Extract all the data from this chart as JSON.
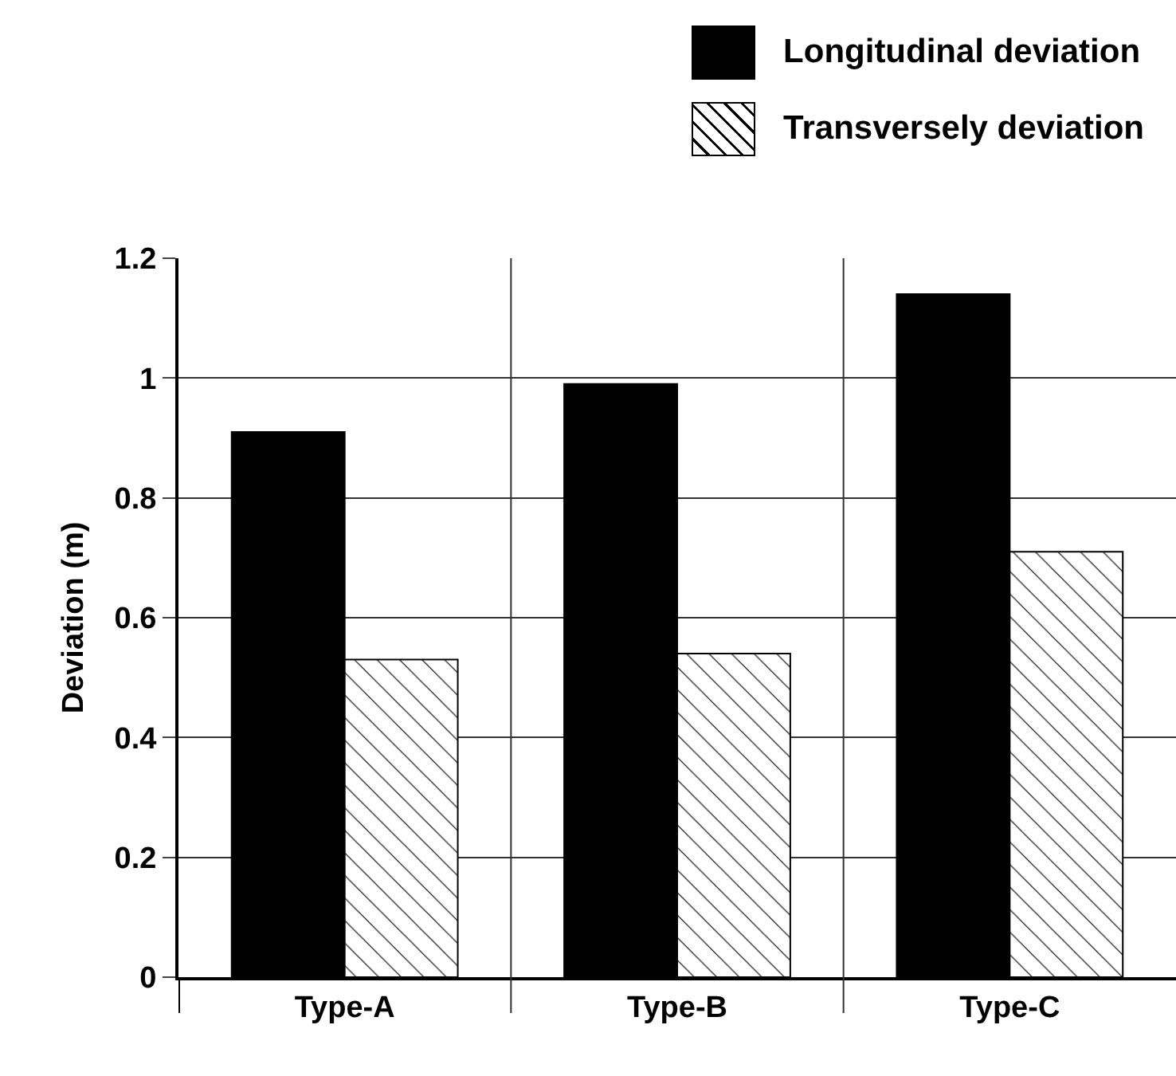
{
  "chart_data": {
    "type": "bar",
    "ylabel": "Deviation (m)",
    "categories": [
      "Type-A",
      "Type-B",
      "Type-C"
    ],
    "series": [
      {
        "name": "Longitudinal deviation",
        "color": "#000000",
        "values": [
          0.91,
          0.99,
          1.14
        ]
      },
      {
        "name": "Transversely deviation",
        "color": "#000000",
        "values": [
          0.53,
          0.54,
          0.71
        ]
      }
    ],
    "ylim": [
      0,
      1.2
    ],
    "yticks": [
      0,
      0.2,
      0.4,
      0.6,
      0.8,
      1,
      1.2
    ],
    "grid": true,
    "legend": "top right"
  }
}
